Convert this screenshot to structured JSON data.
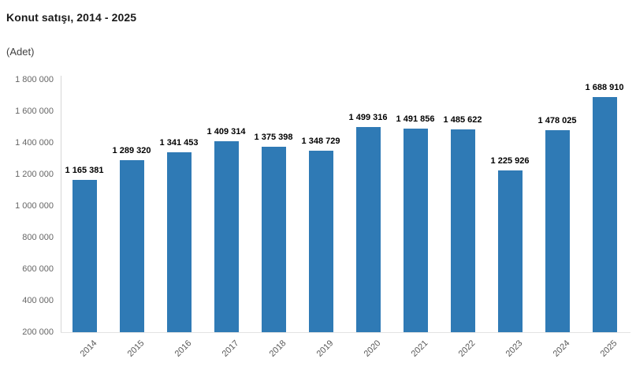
{
  "header": {
    "title": "Konut satışı, 2014 - 2025",
    "subtitle": "(Adet)"
  },
  "colors": {
    "bar": "#2f7ab5",
    "data_label": "#000000",
    "tick_label": "#666666",
    "x_tick_label": "#595959",
    "y_axis_line": "#d6d6d6",
    "x_axis_line": "#e3e3e3",
    "background": "#ffffff"
  },
  "chart_data": {
    "type": "bar",
    "title": "Konut satışı, 2014 - 2025",
    "subtitle": "(Adet)",
    "xlabel": "",
    "ylabel": "",
    "grid": false,
    "legend_position": "none",
    "categories": [
      "2014",
      "2015",
      "2016",
      "2017",
      "2018",
      "2019",
      "2020",
      "2021",
      "2022",
      "2023",
      "2024",
      "2025"
    ],
    "values": [
      1165381,
      1289320,
      1341453,
      1409314,
      1375398,
      1348729,
      1499316,
      1491856,
      1485622,
      1225926,
      1478025,
      1688910
    ],
    "data_labels": [
      "1 165 381",
      "1 289 320",
      "1 341 453",
      "1 409 314",
      "1 375 398",
      "1 348 729",
      "1 499 316",
      "1 491 856",
      "1 485 622",
      "1 225 926",
      "1 478 025",
      "1 688 910"
    ],
    "ylim": [
      200000,
      1800000
    ],
    "ytick_interval": 200000,
    "ytick_labels": [
      "200 000",
      "400 000",
      "600 000",
      "800 000",
      "1 000 000",
      "1 200 000",
      "1 400 000",
      "1 600 000",
      "1 800 000"
    ]
  }
}
